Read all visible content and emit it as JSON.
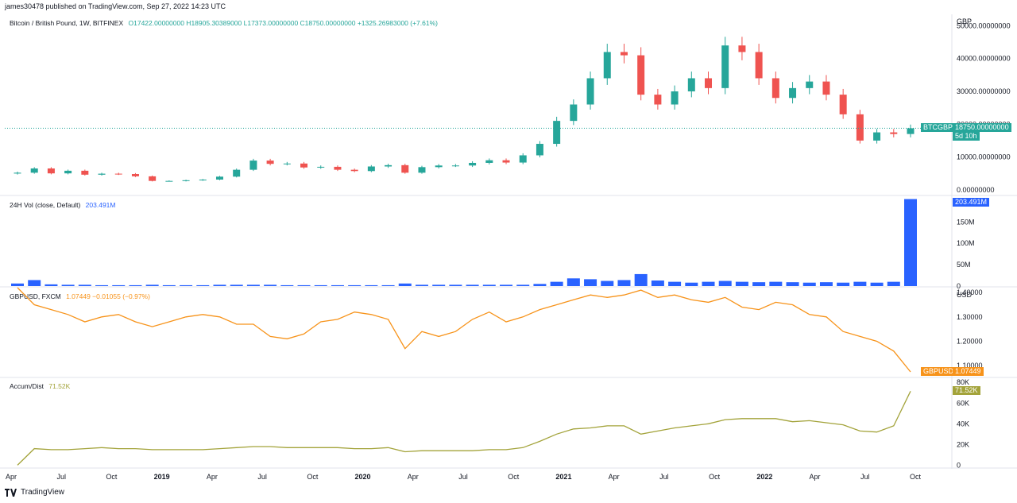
{
  "header": {
    "text": "james30478 published on TradingView.com, Sep 27, 2022 14:23 UTC"
  },
  "footer": {
    "brand": "TradingView"
  },
  "chart_data": [
    {
      "type": "candlestick",
      "title": "Bitcoin / British Pound, 1W, BITFINEX",
      "ohlc_text": "O17422.00000000  H18905.30389000  L17373.00000000  C18750.00000000  +1325.26983000 (+7.61%)",
      "currency": "GBP",
      "ticks": [
        "50000.00000000",
        "40000.00000000",
        "30000.00000000",
        "20000.00000000",
        "10000.00000000",
        "0.00000000"
      ],
      "tick_values": [
        50000,
        40000,
        30000,
        20000,
        10000,
        0
      ],
      "ylim": [
        -1500,
        53500
      ],
      "last_tag": {
        "symbol": "BTCGBP",
        "price": "18750.00000000",
        "countdown": "5d 10h",
        "value": 18750
      },
      "x": [
        "2018-04",
        "2018-05",
        "2018-06",
        "2018-07",
        "2018-08",
        "2018-09",
        "2018-10",
        "2018-11",
        "2018-12",
        "2019-01",
        "2019-02",
        "2019-03",
        "2019-04",
        "2019-05",
        "2019-06",
        "2019-07",
        "2019-08",
        "2019-09",
        "2019-10",
        "2019-11",
        "2019-12",
        "2020-01",
        "2020-02",
        "2020-03",
        "2020-04",
        "2020-05",
        "2020-06",
        "2020-07",
        "2020-08",
        "2020-09",
        "2020-10",
        "2020-11",
        "2020-12",
        "2021-01",
        "2021-02",
        "2021-03",
        "2021-04",
        "2021-05",
        "2021-06",
        "2021-07",
        "2021-08",
        "2021-09",
        "2021-10",
        "2021-11",
        "2021-12",
        "2022-01",
        "2022-02",
        "2022-03",
        "2022-04",
        "2022-05",
        "2022-06",
        "2022-07",
        "2022-08",
        "2022-09"
      ],
      "close": [
        5200,
        6500,
        5000,
        5800,
        4600,
        4900,
        4800,
        4100,
        2700,
        2700,
        2900,
        3100,
        4000,
        6100,
        8900,
        7900,
        8000,
        6800,
        7000,
        6100,
        5700,
        7100,
        7500,
        5200,
        6900,
        7400,
        7400,
        8200,
        9000,
        8300,
        10500,
        14000,
        21000,
        26000,
        34000,
        42000,
        41000,
        29000,
        26000,
        30000,
        34000,
        31000,
        44000,
        42000,
        34000,
        28000,
        31000,
        33000,
        29000,
        23000,
        15000,
        17500,
        17000,
        18750
      ]
    },
    {
      "type": "bar",
      "title": "24H Vol (close, Default)",
      "last_value": "203.491M",
      "ticks": [
        "150M",
        "100M",
        "50M",
        "0"
      ],
      "tick_values": [
        150,
        100,
        50,
        0
      ],
      "unit": "M",
      "ylim": [
        0,
        210
      ],
      "x": [
        "2018-04",
        "2018-05",
        "2018-06",
        "2018-07",
        "2018-08",
        "2018-09",
        "2018-10",
        "2018-11",
        "2018-12",
        "2019-01",
        "2019-02",
        "2019-03",
        "2019-04",
        "2019-05",
        "2019-06",
        "2019-07",
        "2019-08",
        "2019-09",
        "2019-10",
        "2019-11",
        "2019-12",
        "2020-01",
        "2020-02",
        "2020-03",
        "2020-04",
        "2020-05",
        "2020-06",
        "2020-07",
        "2020-08",
        "2020-09",
        "2020-10",
        "2020-11",
        "2020-12",
        "2021-01",
        "2021-02",
        "2021-03",
        "2021-04",
        "2021-05",
        "2021-06",
        "2021-07",
        "2021-08",
        "2021-09",
        "2021-10",
        "2021-11",
        "2021-12",
        "2022-01",
        "2022-02",
        "2022-03",
        "2022-04",
        "2022-05",
        "2022-06",
        "2022-07",
        "2022-08",
        "2022-09"
      ],
      "values": [
        6,
        14,
        4,
        3,
        3,
        2,
        2,
        2,
        3,
        2,
        2,
        2,
        3,
        3,
        3,
        3,
        2,
        2,
        2,
        2,
        2,
        2,
        2,
        6,
        3,
        3,
        3,
        3,
        3,
        3,
        3,
        5,
        10,
        18,
        16,
        12,
        14,
        28,
        13,
        10,
        8,
        10,
        12,
        10,
        9,
        10,
        9,
        8,
        9,
        8,
        10,
        8,
        10,
        203.491
      ]
    },
    {
      "type": "line",
      "title": "GBPUSD, FXCM",
      "ohlc_text": "1.07449  −0.01055 (−0.97%)",
      "currency": "USD",
      "ticks": [
        "1.40000",
        "1.30000",
        "1.20000",
        "1.10000"
      ],
      "tick_values": [
        1.4,
        1.3,
        1.2,
        1.1
      ],
      "ylim": [
        1.055,
        1.42
      ],
      "last_tag": {
        "symbol": "GBPUSD",
        "price": "1.07449",
        "value": 1.07449
      },
      "x": [
        "2018-04",
        "2018-05",
        "2018-06",
        "2018-07",
        "2018-08",
        "2018-09",
        "2018-10",
        "2018-11",
        "2018-12",
        "2019-01",
        "2019-02",
        "2019-03",
        "2019-04",
        "2019-05",
        "2019-06",
        "2019-07",
        "2019-08",
        "2019-09",
        "2019-10",
        "2019-11",
        "2019-12",
        "2020-01",
        "2020-02",
        "2020-03",
        "2020-04",
        "2020-05",
        "2020-06",
        "2020-07",
        "2020-08",
        "2020-09",
        "2020-10",
        "2020-11",
        "2020-12",
        "2021-01",
        "2021-02",
        "2021-03",
        "2021-04",
        "2021-05",
        "2021-06",
        "2021-07",
        "2021-08",
        "2021-09",
        "2021-10",
        "2021-11",
        "2021-12",
        "2022-01",
        "2022-02",
        "2022-03",
        "2022-04",
        "2022-05",
        "2022-06",
        "2022-07",
        "2022-08",
        "2022-09"
      ],
      "values": [
        1.42,
        1.35,
        1.33,
        1.31,
        1.28,
        1.3,
        1.31,
        1.28,
        1.26,
        1.28,
        1.3,
        1.31,
        1.3,
        1.27,
        1.27,
        1.22,
        1.21,
        1.23,
        1.28,
        1.29,
        1.32,
        1.31,
        1.29,
        1.17,
        1.24,
        1.22,
        1.24,
        1.29,
        1.32,
        1.28,
        1.3,
        1.33,
        1.35,
        1.37,
        1.39,
        1.38,
        1.39,
        1.41,
        1.38,
        1.39,
        1.37,
        1.36,
        1.38,
        1.34,
        1.33,
        1.36,
        1.35,
        1.31,
        1.3,
        1.24,
        1.22,
        1.2,
        1.16,
        1.07449
      ]
    },
    {
      "type": "line",
      "title": "Accum/Dist",
      "last_value": "71.52K",
      "ticks": [
        "80K",
        "60K",
        "40K",
        "20K",
        "0"
      ],
      "tick_values": [
        80,
        60,
        40,
        20,
        0
      ],
      "unit": "K",
      "ylim": [
        -2,
        84
      ],
      "x": [
        "2018-04",
        "2018-05",
        "2018-06",
        "2018-07",
        "2018-08",
        "2018-09",
        "2018-10",
        "2018-11",
        "2018-12",
        "2019-01",
        "2019-02",
        "2019-03",
        "2019-04",
        "2019-05",
        "2019-06",
        "2019-07",
        "2019-08",
        "2019-09",
        "2019-10",
        "2019-11",
        "2019-12",
        "2020-01",
        "2020-02",
        "2020-03",
        "2020-04",
        "2020-05",
        "2020-06",
        "2020-07",
        "2020-08",
        "2020-09",
        "2020-10",
        "2020-11",
        "2020-12",
        "2021-01",
        "2021-02",
        "2021-03",
        "2021-04",
        "2021-05",
        "2021-06",
        "2021-07",
        "2021-08",
        "2021-09",
        "2021-10",
        "2021-11",
        "2021-12",
        "2022-01",
        "2022-02",
        "2022-03",
        "2022-04",
        "2022-05",
        "2022-06",
        "2022-07",
        "2022-08",
        "2022-09"
      ],
      "values": [
        0,
        16,
        15,
        15,
        16,
        17,
        16,
        16,
        15,
        15,
        15,
        15,
        16,
        17,
        18,
        18,
        17,
        17,
        17,
        17,
        16,
        16,
        17,
        13,
        14,
        14,
        14,
        14,
        15,
        15,
        17,
        23,
        30,
        35,
        36,
        38,
        38,
        30,
        33,
        36,
        38,
        40,
        44,
        45,
        45,
        45,
        42,
        43,
        41,
        39,
        33,
        32,
        38,
        71.52
      ]
    }
  ],
  "time_axis": [
    "Apr",
    "Jul",
    "Oct",
    "2019",
    "Apr",
    "Jul",
    "Oct",
    "2020",
    "Apr",
    "Jul",
    "Oct",
    "2021",
    "Apr",
    "Jul",
    "Oct",
    "2022",
    "Apr",
    "Jul",
    "Oct"
  ],
  "colors": {
    "up": "#26a69a",
    "down": "#ef5350",
    "volume": "#2962ff",
    "gbpusd": "#f7931a",
    "accum": "#a3a33a",
    "grid": "#e0e3eb",
    "text": "#131722"
  }
}
